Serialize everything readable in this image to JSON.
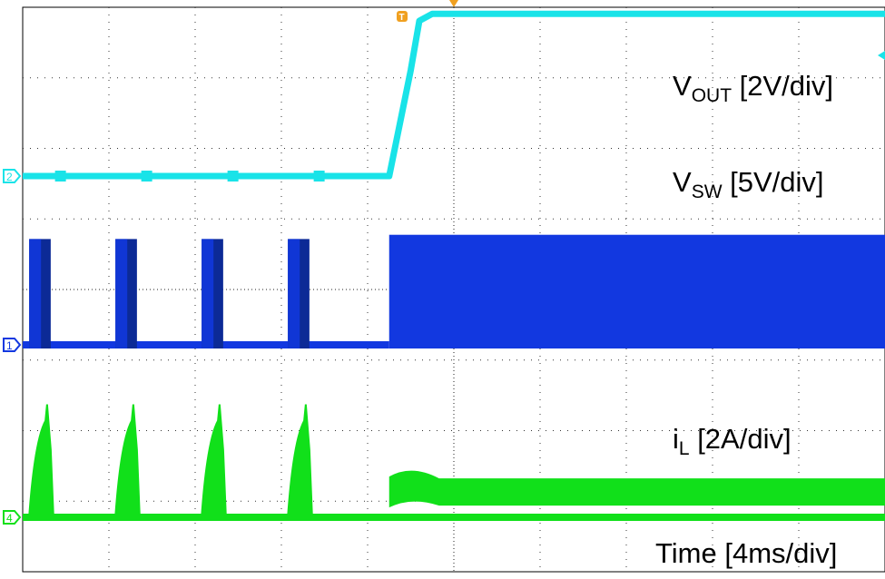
{
  "chart_data": {
    "type": "line",
    "title": "",
    "xlabel": "Time [4ms/div]",
    "ylabel": "",
    "grid": true,
    "divisions": {
      "x": 10,
      "y": 8
    },
    "x_range_ms": [
      0,
      40
    ],
    "series": [
      {
        "name": "VOUT [2V/div]",
        "channel": "2",
        "color": "#19e3e8",
        "label": {
          "main": "V",
          "sub": "OUT",
          "tail": " [2V/div]"
        },
        "x": [
          0,
          17,
          18.0,
          18.4,
          19,
          20,
          40
        ],
        "y": [
          0,
          0,
          3.0,
          4.4,
          4.6,
          4.6,
          4.6
        ]
      },
      {
        "name": "VSW [5V/div]",
        "channel": "1",
        "color": "#1238e0",
        "label": {
          "main": "V",
          "sub": "SW",
          "tail": " [5V/div]"
        },
        "bursts_ms": [
          [
            0.3,
            1.3
          ],
          [
            4.3,
            5.3
          ],
          [
            8.3,
            9.3
          ],
          [
            12.3,
            13.3
          ]
        ],
        "burst_peak_v": 7.5,
        "continuous_from_ms": 17,
        "continuous_peak_v": 7.8
      },
      {
        "name": "iL [2A/div]",
        "channel": "4",
        "color": "#11e01a",
        "label": {
          "main": "i",
          "sub": "L",
          "tail": " [2A/div]"
        },
        "pulses_ms": [
          [
            0.3,
            1.3
          ],
          [
            4.3,
            5.3
          ],
          [
            8.3,
            9.3
          ],
          [
            12.3,
            13.3
          ]
        ],
        "pulse_peak_a": 3.2,
        "steady_from_ms": 17,
        "steady_a": 1.0
      }
    ]
  },
  "markers": {
    "trigger": "T",
    "channels": [
      "2",
      "1",
      "4"
    ]
  }
}
